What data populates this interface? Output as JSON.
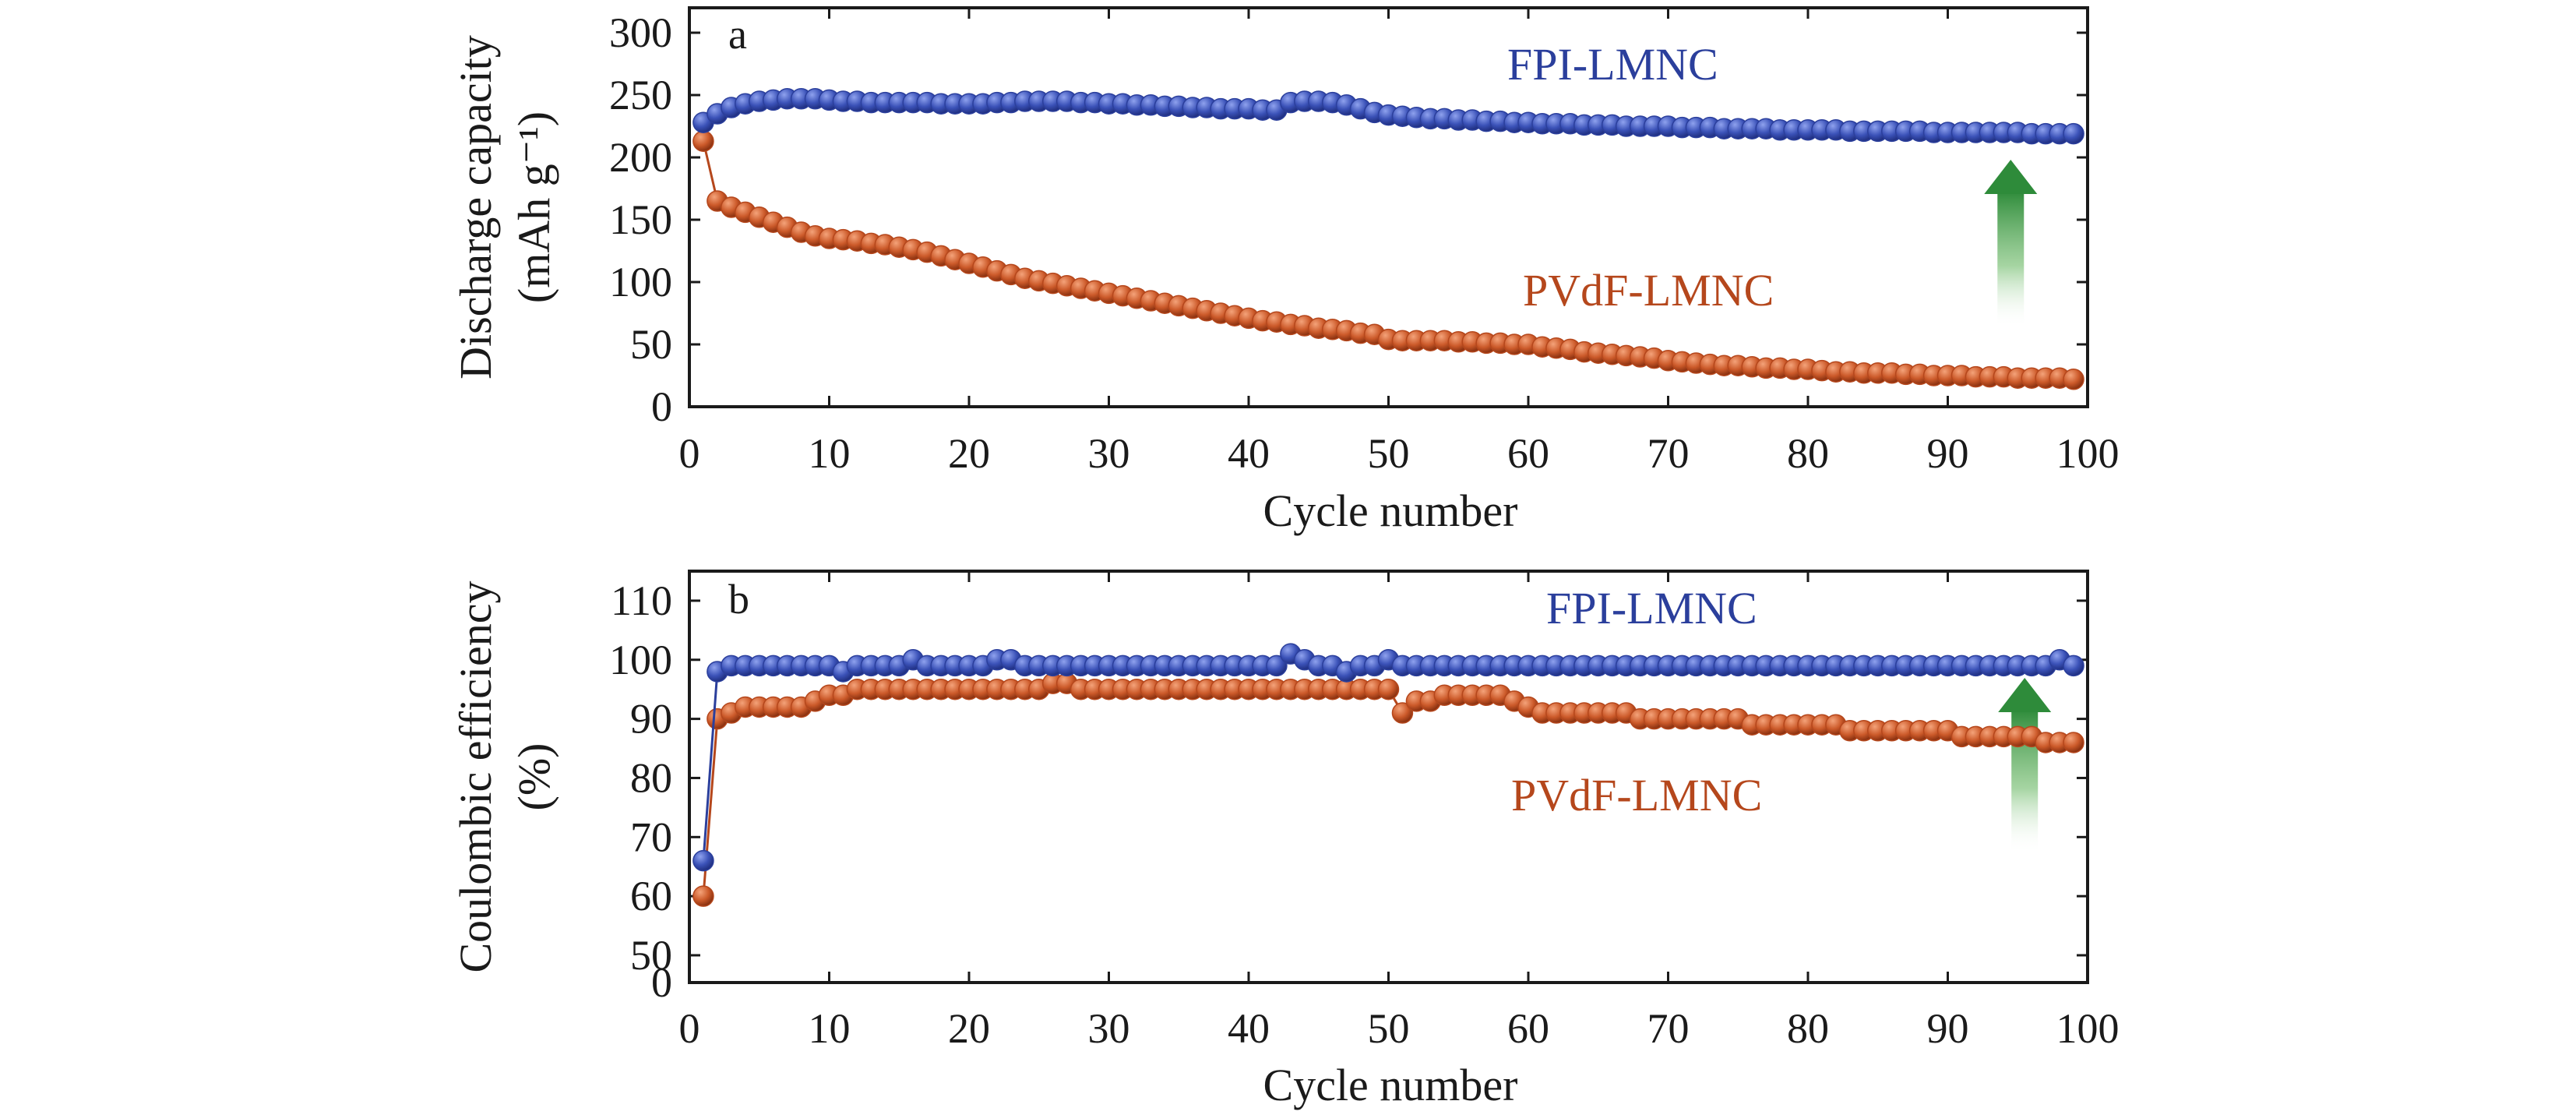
{
  "colors": {
    "fpi": "#2b3f9c",
    "fpi_marker": "#3b52b8",
    "pvdf": "#b5471c",
    "pvdf_marker": "#cc5a2a",
    "arrow": "#2e8b3a"
  },
  "chart_data": [
    {
      "type": "scatter",
      "panel_label": "a",
      "xlabel": "Cycle number",
      "ylabel": "Discharge capacity",
      "ylabel_units": "(mAh g⁻¹)",
      "xlim": [
        0,
        100
      ],
      "ylim": [
        0,
        320
      ],
      "xticks": [
        0,
        10,
        20,
        30,
        40,
        50,
        60,
        70,
        80,
        90,
        100
      ],
      "yticks": [
        0,
        50,
        100,
        150,
        200,
        250,
        300
      ],
      "x": [
        1,
        2,
        3,
        4,
        5,
        6,
        7,
        8,
        9,
        10,
        11,
        12,
        13,
        14,
        15,
        16,
        17,
        18,
        19,
        20,
        21,
        22,
        23,
        24,
        25,
        26,
        27,
        28,
        29,
        30,
        31,
        32,
        33,
        34,
        35,
        36,
        37,
        38,
        39,
        40,
        41,
        42,
        43,
        44,
        45,
        46,
        47,
        48,
        49,
        50,
        51,
        52,
        53,
        54,
        55,
        56,
        57,
        58,
        59,
        60,
        61,
        62,
        63,
        64,
        65,
        66,
        67,
        68,
        69,
        70,
        71,
        72,
        73,
        74,
        75,
        76,
        77,
        78,
        79,
        80,
        81,
        82,
        83,
        84,
        85,
        86,
        87,
        88,
        89,
        90,
        91,
        92,
        93,
        94,
        95,
        96,
        97,
        98,
        99
      ],
      "series": [
        {
          "name": "FPI-LMNC",
          "values": [
            228,
            235,
            240,
            243,
            245,
            246,
            247,
            247,
            247,
            246,
            245,
            245,
            244,
            244,
            244,
            244,
            244,
            243,
            243,
            243,
            243,
            244,
            244,
            245,
            245,
            245,
            245,
            244,
            244,
            243,
            243,
            242,
            242,
            241,
            241,
            240,
            240,
            239,
            239,
            239,
            238,
            238,
            244,
            245,
            245,
            244,
            242,
            239,
            236,
            234,
            233,
            232,
            231,
            231,
            230,
            230,
            229,
            229,
            228,
            228,
            227,
            227,
            227,
            226,
            226,
            226,
            225,
            225,
            225,
            225,
            224,
            224,
            224,
            223,
            223,
            223,
            223,
            222,
            222,
            222,
            222,
            222,
            221,
            221,
            221,
            221,
            221,
            221,
            220,
            220,
            220,
            220,
            220,
            220,
            220,
            219,
            219,
            219,
            219
          ]
        },
        {
          "name": "PVdF-LMNC",
          "values": [
            213,
            165,
            160,
            156,
            152,
            148,
            144,
            140,
            137,
            135,
            134,
            133,
            131,
            130,
            128,
            126,
            124,
            121,
            118,
            115,
            112,
            109,
            106,
            103,
            101,
            99,
            97,
            95,
            93,
            91,
            89,
            87,
            85,
            83,
            81,
            79,
            77,
            75,
            73,
            71,
            69,
            68,
            66,
            65,
            63,
            62,
            61,
            59,
            58,
            54,
            53,
            53,
            53,
            53,
            52,
            52,
            51,
            51,
            50,
            50,
            48,
            47,
            46,
            44,
            43,
            42,
            41,
            40,
            39,
            37,
            36,
            35,
            34,
            33,
            33,
            32,
            31,
            31,
            30,
            30,
            29,
            28,
            28,
            27,
            27,
            27,
            26,
            26,
            25,
            25,
            25,
            24,
            24,
            24,
            23,
            23,
            23,
            23,
            22
          ]
        }
      ],
      "annotations": [
        "FPI-LMNC",
        "PVdF-LMNC"
      ],
      "arrow_x": 94.5
    },
    {
      "type": "scatter",
      "panel_label": "b",
      "xlabel": "Cycle number",
      "ylabel": "Coulombic efficiency",
      "ylabel_units": "(%)",
      "xlim": [
        0,
        100
      ],
      "ylim": [
        0,
        115
      ],
      "xticks": [
        0,
        10,
        20,
        30,
        40,
        50,
        60,
        70,
        80,
        90,
        100
      ],
      "yticks": [
        0,
        50,
        60,
        70,
        80,
        90,
        100,
        110
      ],
      "axis_break": [
        0,
        50
      ],
      "x": [
        1,
        2,
        3,
        4,
        5,
        6,
        7,
        8,
        9,
        10,
        11,
        12,
        13,
        14,
        15,
        16,
        17,
        18,
        19,
        20,
        21,
        22,
        23,
        24,
        25,
        26,
        27,
        28,
        29,
        30,
        31,
        32,
        33,
        34,
        35,
        36,
        37,
        38,
        39,
        40,
        41,
        42,
        43,
        44,
        45,
        46,
        47,
        48,
        49,
        50,
        51,
        52,
        53,
        54,
        55,
        56,
        57,
        58,
        59,
        60,
        61,
        62,
        63,
        64,
        65,
        66,
        67,
        68,
        69,
        70,
        71,
        72,
        73,
        74,
        75,
        76,
        77,
        78,
        79,
        80,
        81,
        82,
        83,
        84,
        85,
        86,
        87,
        88,
        89,
        90,
        91,
        92,
        93,
        94,
        95,
        96,
        97,
        98,
        99
      ],
      "series": [
        {
          "name": "FPI-LMNC",
          "values": [
            66,
            98,
            99,
            99,
            99,
            99,
            99,
            99,
            99,
            99,
            98,
            99,
            99,
            99,
            99,
            100,
            99,
            99,
            99,
            99,
            99,
            100,
            100,
            99,
            99,
            99,
            99,
            99,
            99,
            99,
            99,
            99,
            99,
            99,
            99,
            99,
            99,
            99,
            99,
            99,
            99,
            99,
            101,
            100,
            99,
            99,
            98,
            99,
            99,
            100,
            99,
            99,
            99,
            99,
            99,
            99,
            99,
            99,
            99,
            99,
            99,
            99,
            99,
            99,
            99,
            99,
            99,
            99,
            99,
            99,
            99,
            99,
            99,
            99,
            99,
            99,
            99,
            99,
            99,
            99,
            99,
            99,
            99,
            99,
            99,
            99,
            99,
            99,
            99,
            99,
            99,
            99,
            99,
            99,
            99,
            99,
            99,
            100,
            99
          ]
        },
        {
          "name": "PVdF-LMNC",
          "values": [
            60,
            90,
            91,
            92,
            92,
            92,
            92,
            92,
            93,
            94,
            94,
            95,
            95,
            95,
            95,
            95,
            95,
            95,
            95,
            95,
            95,
            95,
            95,
            95,
            95,
            96,
            96,
            95,
            95,
            95,
            95,
            95,
            95,
            95,
            95,
            95,
            95,
            95,
            95,
            95,
            95,
            95,
            95,
            95,
            95,
            95,
            95,
            95,
            95,
            95,
            91,
            93,
            93,
            94,
            94,
            94,
            94,
            94,
            93,
            92,
            91,
            91,
            91,
            91,
            91,
            91,
            91,
            90,
            90,
            90,
            90,
            90,
            90,
            90,
            90,
            89,
            89,
            89,
            89,
            89,
            89,
            89,
            88,
            88,
            88,
            88,
            88,
            88,
            88,
            88,
            87,
            87,
            87,
            87,
            87,
            87,
            86,
            86,
            86
          ]
        }
      ],
      "annotations": [
        "FPI-LMNC",
        "PVdF-LMNC"
      ],
      "arrow_x": 95.5
    }
  ]
}
